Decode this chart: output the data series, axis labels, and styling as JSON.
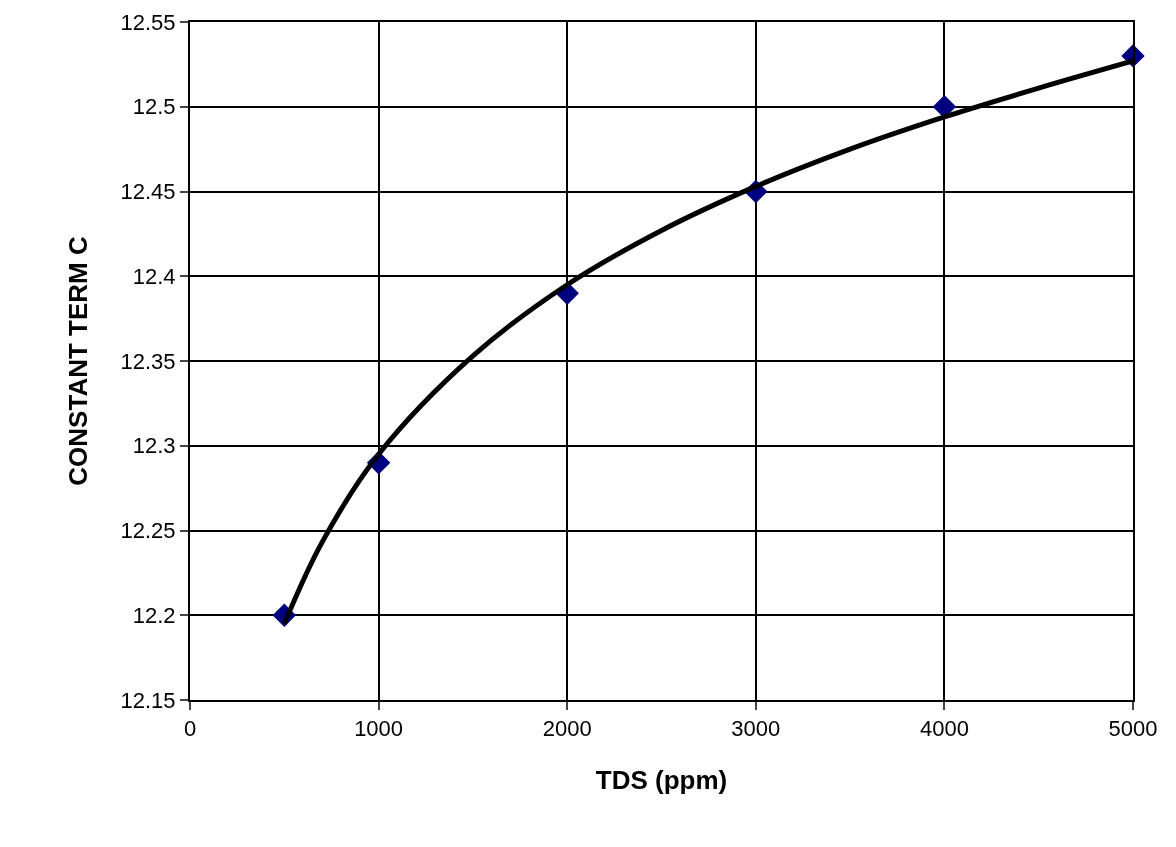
{
  "chart_data": {
    "type": "scatter",
    "xlabel": "TDS (ppm)",
    "ylabel": "CONSTANT TERM C",
    "series": [
      {
        "type": "line",
        "color": "#000000",
        "marker": "none",
        "x": [
          500,
          700,
          1000,
          1500,
          2000,
          2500,
          3000,
          3500,
          4000,
          4500,
          5000
        ],
        "values": [
          12.195,
          12.243,
          12.295,
          12.353,
          12.395,
          12.427,
          12.453,
          12.475,
          12.494,
          12.511,
          12.527
        ]
      },
      {
        "color": "#000080",
        "marker": "diamond",
        "x": [
          500,
          1000,
          2000,
          3000,
          4000,
          5000
        ],
        "values": [
          12.2,
          12.29,
          12.39,
          12.45,
          12.5,
          12.53
        ]
      }
    ],
    "xlim": [
      0,
      5000
    ],
    "xticks": [
      0,
      1000,
      2000,
      3000,
      4000,
      5000
    ],
    "ylim": [
      12.15,
      12.55
    ],
    "yticks": [
      12.15,
      12.2,
      12.25,
      12.3,
      12.35,
      12.4,
      12.45,
      12.5,
      12.55
    ],
    "grid": true,
    "line_style": "solid"
  }
}
